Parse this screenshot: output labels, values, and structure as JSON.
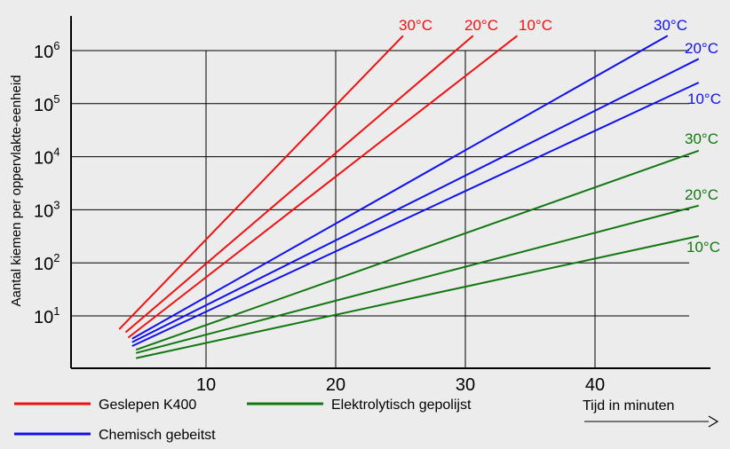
{
  "chart_data": {
    "type": "line",
    "xlabel": "Tijd in minuten",
    "ylabel": "Aantal kiemen per oppervlakte-eenheid",
    "y_scale": "log",
    "xlim": [
      0,
      48
    ],
    "ylim": [
      1,
      1000000
    ],
    "x_ticks": [
      {
        "value": 10,
        "label": "10"
      },
      {
        "value": 20,
        "label": "20"
      },
      {
        "value": 30,
        "label": "30"
      },
      {
        "value": 40,
        "label": "40"
      }
    ],
    "y_ticks": [
      {
        "value": 10,
        "base": "10",
        "exp": "1"
      },
      {
        "value": 100,
        "base": "10",
        "exp": "2"
      },
      {
        "value": 1000,
        "base": "10",
        "exp": "3"
      },
      {
        "value": 10000,
        "base": "10",
        "exp": "4"
      },
      {
        "value": 100000,
        "base": "10",
        "exp": "5"
      },
      {
        "value": 1000000,
        "base": "10",
        "exp": "6"
      }
    ],
    "grid": true,
    "legend_position": "bottom",
    "legend": [
      {
        "group": "red",
        "label": "Geslepen K400",
        "color": "#ee1111"
      },
      {
        "group": "green",
        "label": "Elektrolytisch gepolijst",
        "color": "#117711"
      },
      {
        "group": "blue",
        "label": "Chemisch gebeitst",
        "color": "#1111ee"
      }
    ],
    "series": [
      {
        "group": "red",
        "label": "30°C",
        "color": "#ee1111",
        "points": [
          [
            3.3,
            5.6
          ],
          [
            25.2,
            1900000
          ]
        ]
      },
      {
        "group": "red",
        "label": "20°C",
        "color": "#ee1111",
        "points": [
          [
            3.8,
            4.9
          ],
          [
            30.6,
            1900000
          ]
        ]
      },
      {
        "group": "red",
        "label": "10°C",
        "color": "#ee1111",
        "points": [
          [
            4.0,
            3.9
          ],
          [
            34.0,
            1900000
          ]
        ]
      },
      {
        "group": "blue",
        "label": "30°C",
        "color": "#1111ee",
        "points": [
          [
            4.3,
            3.7
          ],
          [
            45.6,
            1900000
          ]
        ]
      },
      {
        "group": "blue",
        "label": "20°C",
        "color": "#1111ee",
        "points": [
          [
            4.3,
            3.2
          ],
          [
            48.0,
            700000
          ]
        ]
      },
      {
        "group": "blue",
        "label": "10°C",
        "color": "#1111ee",
        "points": [
          [
            4.3,
            2.7
          ],
          [
            48.0,
            250000
          ]
        ]
      },
      {
        "group": "green",
        "label": "30°C",
        "color": "#117711",
        "points": [
          [
            4.6,
            2.3
          ],
          [
            48.0,
            13000
          ]
        ]
      },
      {
        "group": "green",
        "label": "20°C",
        "color": "#117711",
        "points": [
          [
            4.6,
            2.0
          ],
          [
            48.0,
            1200
          ]
        ]
      },
      {
        "group": "green",
        "label": "10°C",
        "color": "#117711",
        "points": [
          [
            4.6,
            1.6
          ],
          [
            48.0,
            320
          ]
        ]
      }
    ]
  }
}
